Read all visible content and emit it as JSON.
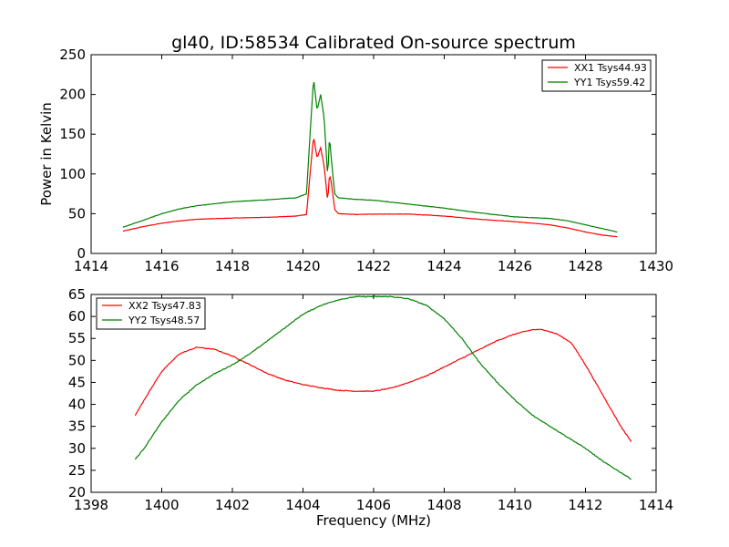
{
  "chart_data": [
    {
      "type": "line",
      "title": "gl40, ID:58534 Calibrated On-source spectrum",
      "xlabel": "",
      "ylabel": "Power in Kelvin",
      "xlim": [
        1414,
        1430
      ],
      "ylim": [
        0,
        250
      ],
      "xticks": [
        "1414",
        "1416",
        "1418",
        "1420",
        "1422",
        "1424",
        "1426",
        "1428",
        "1430"
      ],
      "yticks": [
        "0",
        "50",
        "100",
        "150",
        "200",
        "250"
      ],
      "legend": "top-right",
      "grid": false,
      "series": [
        {
          "name": "XX1 Tsys44.93",
          "color": "#ff0000",
          "x": [
            1414.9,
            1415.5,
            1416.0,
            1416.5,
            1417.0,
            1418.0,
            1419.0,
            1419.8,
            1420.1,
            1420.2,
            1420.3,
            1420.4,
            1420.5,
            1420.6,
            1420.7,
            1420.75,
            1420.8,
            1420.9,
            1421.0,
            1421.5,
            1422.0,
            1423.0,
            1424.0,
            1425.0,
            1426.0,
            1427.0,
            1427.5,
            1428.0,
            1428.5,
            1428.9
          ],
          "y": [
            28,
            34,
            38,
            41,
            43,
            44.5,
            45.5,
            47,
            49,
            100,
            147,
            120,
            133,
            110,
            65,
            100,
            90,
            55,
            50,
            49,
            49.5,
            49.5,
            47,
            43,
            40,
            36,
            32,
            27,
            23,
            21
          ]
        },
        {
          "name": "YY1 Tsys59.42",
          "color": "#008000",
          "x": [
            1414.9,
            1415.5,
            1416.0,
            1416.5,
            1417.0,
            1418.0,
            1419.0,
            1419.8,
            1420.1,
            1420.2,
            1420.3,
            1420.4,
            1420.5,
            1420.6,
            1420.7,
            1420.75,
            1420.8,
            1420.9,
            1421.0,
            1421.5,
            1422.0,
            1423.0,
            1424.0,
            1425.0,
            1426.0,
            1427.0,
            1427.5,
            1428.0,
            1428.5,
            1428.9
          ],
          "y": [
            33,
            42,
            50,
            56,
            60,
            65,
            67.5,
            70,
            75,
            150,
            220,
            180,
            200,
            170,
            95,
            148,
            120,
            75,
            70,
            68,
            67,
            62,
            57,
            51,
            46,
            44,
            41,
            36,
            31,
            27
          ]
        }
      ]
    },
    {
      "type": "line",
      "title": "",
      "xlabel": "Frequency (MHz)",
      "ylabel": "",
      "xlim": [
        1398,
        1414
      ],
      "ylim": [
        20,
        65
      ],
      "xticks": [
        "1398",
        "1400",
        "1402",
        "1404",
        "1406",
        "1408",
        "1410",
        "1412",
        "1414"
      ],
      "yticks": [
        "20",
        "25",
        "30",
        "35",
        "40",
        "45",
        "50",
        "55",
        "60",
        "65"
      ],
      "legend": "top-left",
      "grid": false,
      "series": [
        {
          "name": "XX2 Tsys47.83",
          "color": "#ff0000",
          "x": [
            1399.25,
            1399.5,
            1400.0,
            1400.5,
            1401.0,
            1401.5,
            1402.0,
            1402.5,
            1403.0,
            1403.5,
            1404.0,
            1404.5,
            1405.0,
            1405.5,
            1406.0,
            1406.5,
            1407.0,
            1407.5,
            1408.0,
            1408.5,
            1409.0,
            1409.5,
            1410.0,
            1410.5,
            1410.8,
            1411.2,
            1411.6,
            1412.0,
            1412.5,
            1413.0,
            1413.3
          ],
          "y": [
            37.5,
            41,
            47.5,
            51.5,
            53,
            52.5,
            51,
            49,
            47,
            45.5,
            44.5,
            43.8,
            43.2,
            43,
            43,
            43.7,
            45,
            46.5,
            48.5,
            50.5,
            52.5,
            54.5,
            56,
            57,
            57,
            56,
            54,
            49,
            42,
            35,
            31.5
          ]
        },
        {
          "name": "YY2 Tsys48.57",
          "color": "#008000",
          "x": [
            1399.25,
            1399.5,
            1400.0,
            1400.5,
            1401.0,
            1401.5,
            1402.0,
            1402.5,
            1403.0,
            1403.5,
            1404.0,
            1404.5,
            1405.0,
            1405.5,
            1406.0,
            1406.5,
            1407.0,
            1407.5,
            1408.0,
            1408.5,
            1409.0,
            1409.5,
            1410.0,
            1410.5,
            1411.0,
            1411.5,
            1412.0,
            1412.5,
            1413.0,
            1413.3
          ],
          "y": [
            27.5,
            30,
            36,
            41,
            44.5,
            47,
            49,
            51.5,
            54.5,
            57.5,
            60.5,
            62.5,
            63.8,
            64.5,
            64.5,
            64.5,
            64,
            62.5,
            59.5,
            55,
            49.5,
            45,
            41,
            37.5,
            35,
            32.5,
            30,
            27,
            24.5,
            23
          ]
        }
      ]
    }
  ]
}
